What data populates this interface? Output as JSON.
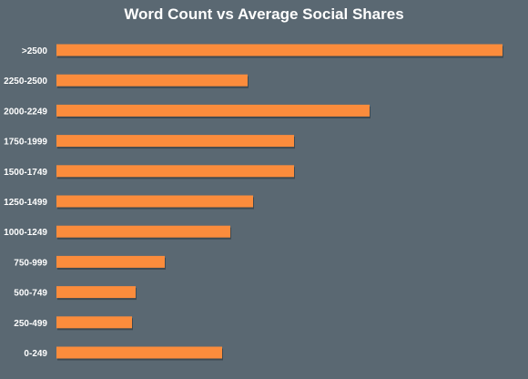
{
  "chart_data": {
    "type": "bar",
    "orientation": "horizontal",
    "title": "Word Count vs Average Social Shares",
    "xlabel": "",
    "ylabel": "",
    "categories": [
      "0-249",
      "250-499",
      "500-749",
      "750-999",
      "1000-1249",
      "1250-1499",
      "1500-1749",
      "1750-1999",
      "2000-2249",
      "2250-2500",
      ">2500"
    ],
    "values": [
      182,
      83,
      87,
      119,
      191,
      216,
      261,
      261,
      344,
      210,
      490
    ],
    "xlim": [
      0,
      490
    ],
    "grid": false,
    "colors": {
      "bar": "#fb8c3c",
      "bar_shadow": "#3e4a52",
      "background": "#5a6872",
      "text": "#ffffff"
    }
  }
}
